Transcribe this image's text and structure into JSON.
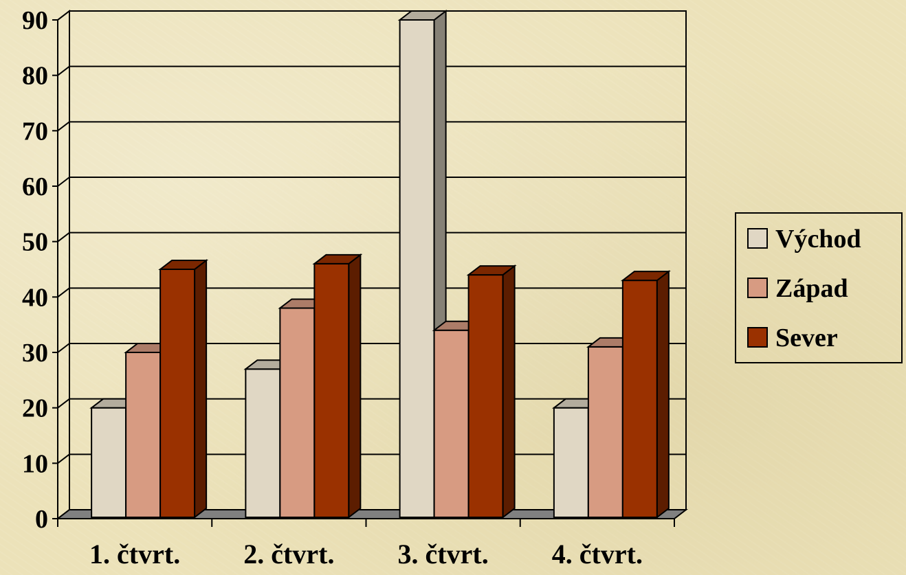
{
  "chart_data": {
    "type": "bar",
    "categories": [
      "1. čtvrt.",
      "2. čtvrt.",
      "3. čtvrt.",
      "4. čtvrt."
    ],
    "series": [
      {
        "name": "Východ",
        "values": [
          20,
          27,
          90,
          20
        ],
        "color": "#e0d7c4"
      },
      {
        "name": "Západ",
        "values": [
          30,
          38,
          34,
          31
        ],
        "color": "#d79b82"
      },
      {
        "name": "Sever",
        "values": [
          45,
          46,
          44,
          43
        ],
        "color": "#9a3100"
      }
    ],
    "y_ticks": [
      "0",
      "10",
      "20",
      "30",
      "40",
      "50",
      "60",
      "70",
      "80",
      "90"
    ],
    "ylim": [
      0,
      90
    ],
    "grid": true,
    "legend_position": "right",
    "style": "3d-clustered-column"
  }
}
